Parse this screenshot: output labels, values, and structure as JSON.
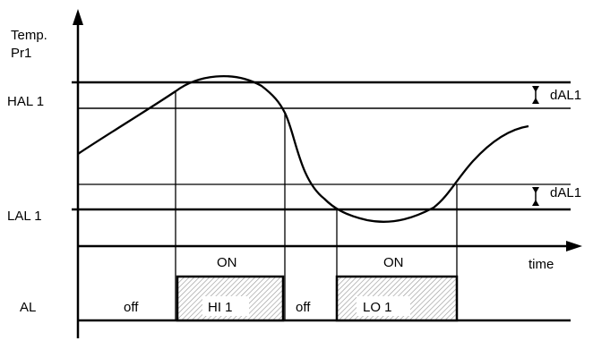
{
  "axis": {
    "y_label_line1": "Temp.",
    "y_label_line2": "Pr1",
    "x_label": "time"
  },
  "levels": {
    "hal_label": "HAL 1",
    "lal_label": "LAL 1",
    "dal_upper_label": "dAL1",
    "dal_lower_label": "dAL1"
  },
  "timeline": {
    "row_label": "AL",
    "segments": [
      {
        "state": "off",
        "label": "off",
        "active": false
      },
      {
        "state": "ON",
        "label": "HI 1",
        "active": true
      },
      {
        "state": "off",
        "label": "off",
        "active": false
      },
      {
        "state": "ON",
        "label": "LO 1",
        "active": true
      }
    ],
    "on_label_1": "ON",
    "on_label_2": "ON"
  },
  "colors": {
    "line": "#000000",
    "hatch": "#9a9a9a",
    "background": "#ffffff"
  }
}
